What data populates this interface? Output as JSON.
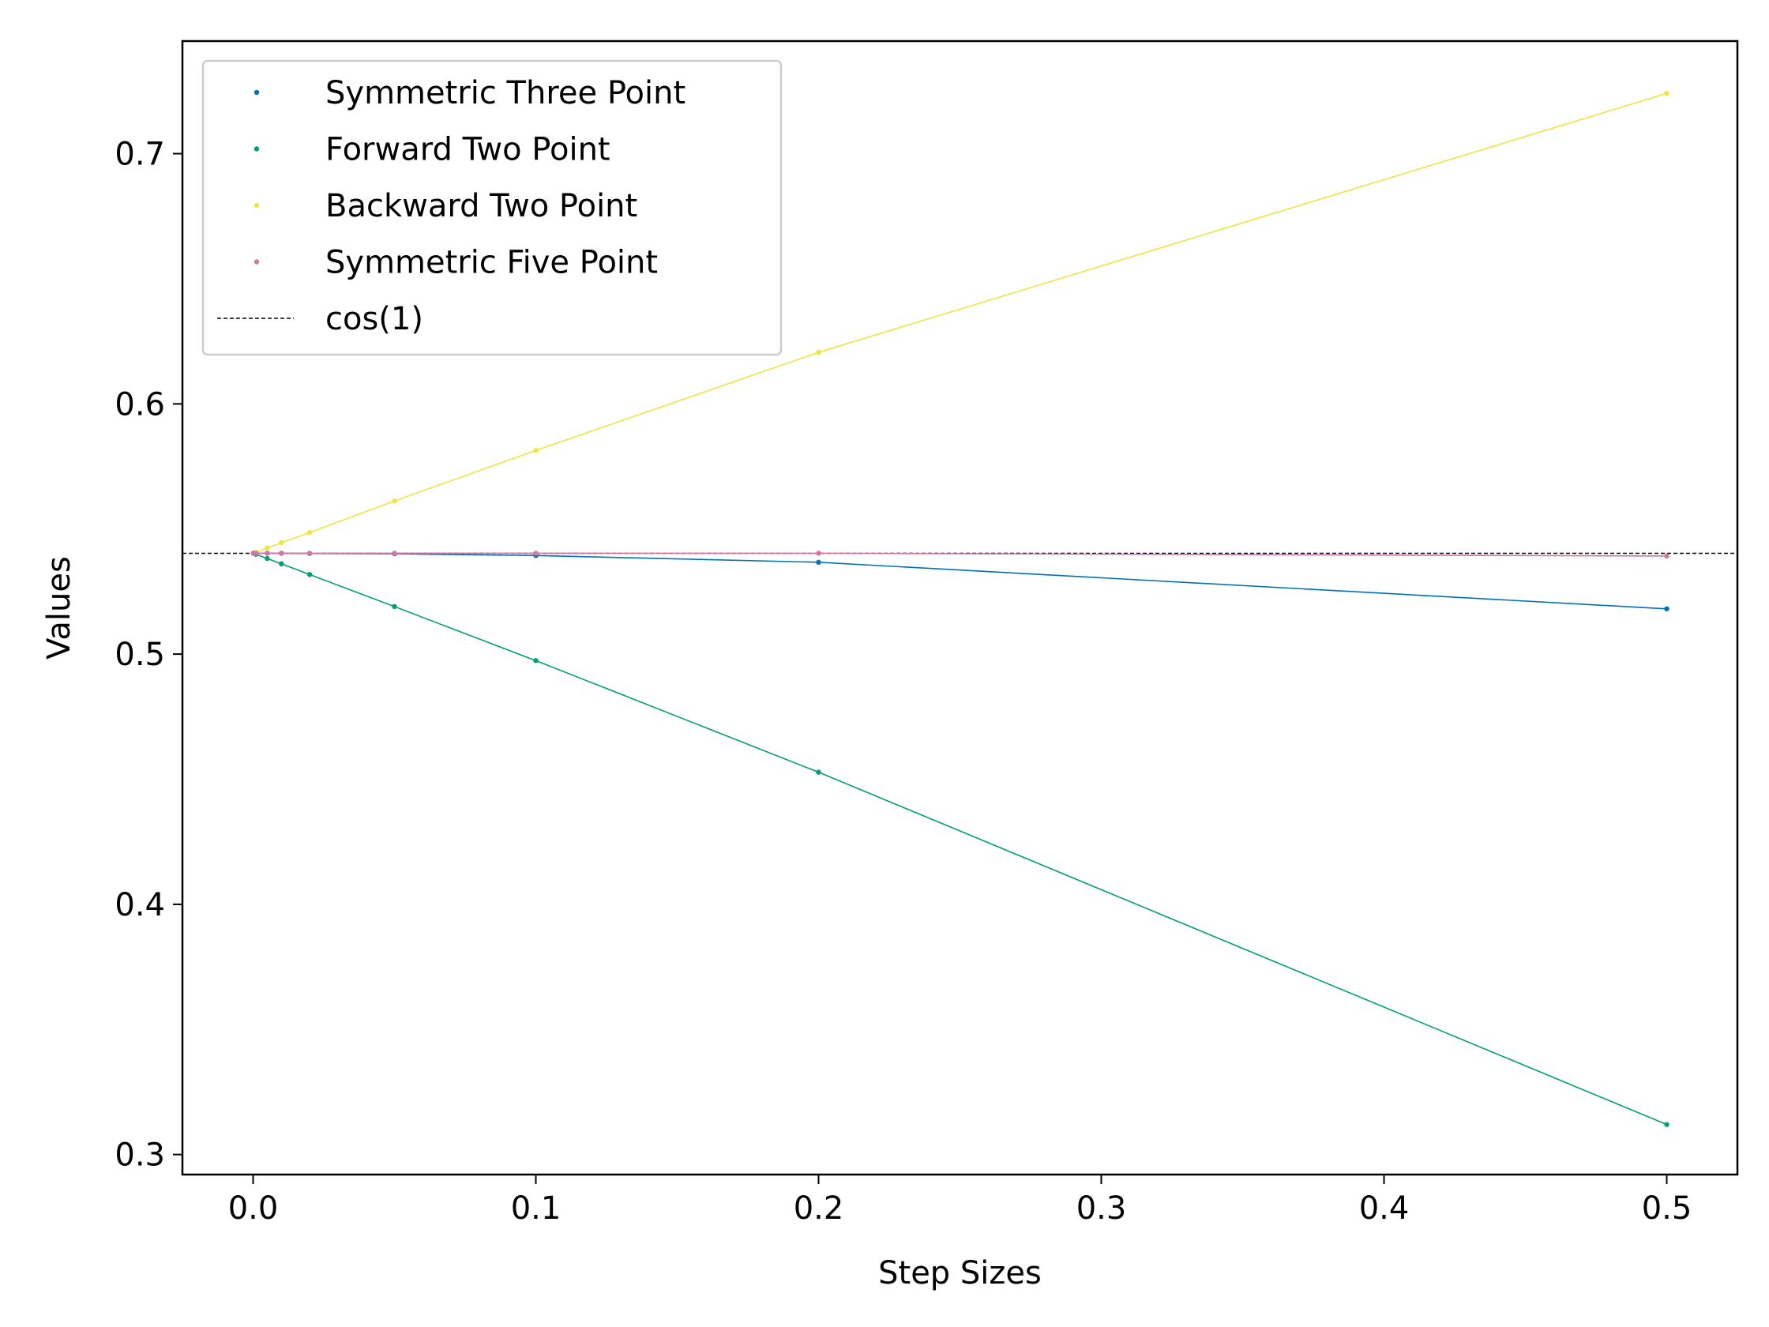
{
  "chart_data": {
    "type": "line",
    "xlabel": "Step Sizes",
    "ylabel": "Values",
    "xlim": [
      -0.025,
      0.525
    ],
    "ylim": [
      0.292,
      0.745
    ],
    "xticks": [
      0.0,
      0.1,
      0.2,
      0.3,
      0.4,
      0.5
    ],
    "xtick_labels": [
      "0.0",
      "0.1",
      "0.2",
      "0.3",
      "0.4",
      "0.5"
    ],
    "yticks": [
      0.3,
      0.4,
      0.5,
      0.6,
      0.7
    ],
    "ytick_labels": [
      "0.3",
      "0.4",
      "0.5",
      "0.6",
      "0.7"
    ],
    "grid": false,
    "legend_position": "top-left",
    "x": [
      0.0001,
      0.001,
      0.005,
      0.01,
      0.02,
      0.05,
      0.1,
      0.2,
      0.5
    ],
    "series": [
      {
        "name": "Symmetric Three Point",
        "color": "#0072b2",
        "values": [
          0.5403,
          0.5403,
          0.5403,
          0.5403,
          0.5402,
          0.5401,
          0.5394,
          0.5367,
          0.5181
        ]
      },
      {
        "name": "Forward Two Point",
        "color": "#009e73",
        "values": [
          0.5403,
          0.5399,
          0.5382,
          0.5361,
          0.5318,
          0.519,
          0.4974,
          0.4528,
          0.312
        ]
      },
      {
        "name": "Backward Two Point",
        "color": "#f0e442",
        "values": [
          0.5403,
          0.5407,
          0.5424,
          0.5445,
          0.5486,
          0.5612,
          0.5814,
          0.6206,
          0.7241
        ]
      },
      {
        "name": "Symmetric Five Point",
        "color": "#cc79a7",
        "values": [
          0.5403,
          0.5403,
          0.5403,
          0.5403,
          0.5403,
          0.5403,
          0.5403,
          0.5403,
          0.5392
        ]
      }
    ],
    "reference_line": {
      "name": "cos(1)",
      "value": 0.5403,
      "color": "#000000",
      "style": "dashed"
    }
  }
}
